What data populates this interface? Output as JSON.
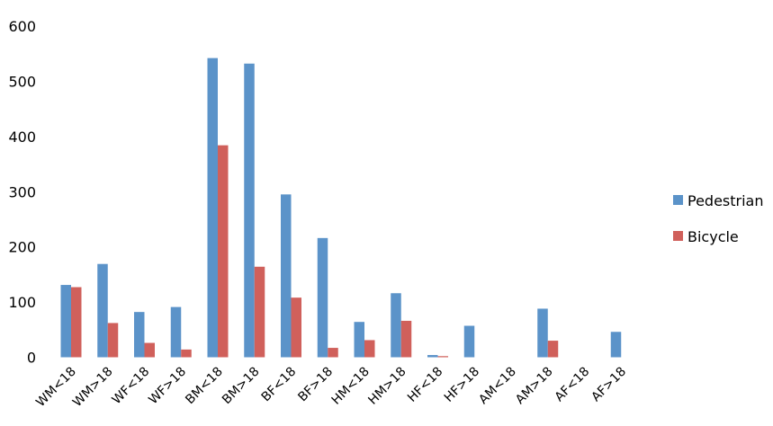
{
  "chart_data": {
    "type": "bar",
    "categories": [
      "WM<18",
      "WM>18",
      "WF<18",
      "WF>18",
      "BM<18",
      "BM>18",
      "BF<18",
      "BF>18",
      "HM<18",
      "HM>18",
      "HF<18",
      "HF>18",
      "AM<18",
      "AM>18",
      "AF<18",
      "AF>18"
    ],
    "series": [
      {
        "name": "Pedestrian",
        "color": "#5b93c9",
        "values": [
          131,
          169,
          82,
          91,
          542,
          532,
          295,
          216,
          64,
          116,
          4,
          57,
          0,
          88,
          0,
          46
        ]
      },
      {
        "name": "Bicycle",
        "color": "#d0605b",
        "values": [
          127,
          62,
          26,
          14,
          384,
          164,
          108,
          17,
          31,
          66,
          2,
          0,
          0,
          30,
          0,
          0
        ]
      }
    ],
    "yticks": [
      "0",
      "100",
      "200",
      "300",
      "400",
      "500",
      "600"
    ],
    "ylim": [
      0,
      600
    ],
    "grid": false,
    "legend": "right",
    "title": "",
    "xlabel": "",
    "ylabel": ""
  }
}
